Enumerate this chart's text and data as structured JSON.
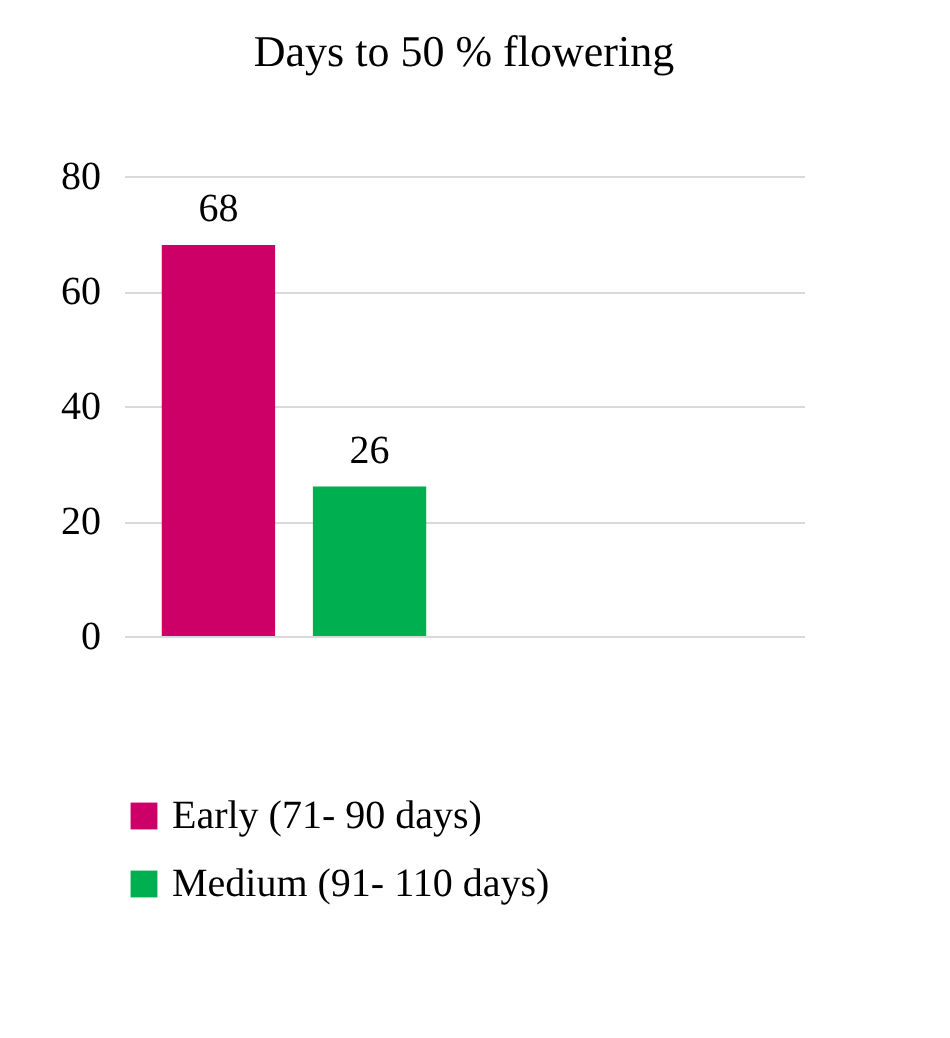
{
  "chart_data": {
    "type": "bar",
    "title": "Days to 50 % flowering",
    "categories": [
      null
    ],
    "series": [
      {
        "name": "Early (71- 90 days)",
        "color": "#cc0066",
        "values": [
          68
        ]
      },
      {
        "name": "Medium (91- 110 days)",
        "color": "#00b050",
        "values": [
          26
        ]
      }
    ],
    "ylim": [
      0,
      80
    ],
    "yticks": [
      0,
      20,
      40,
      60,
      80
    ],
    "grid": "y",
    "legend": "bottom",
    "data_labels": true
  }
}
